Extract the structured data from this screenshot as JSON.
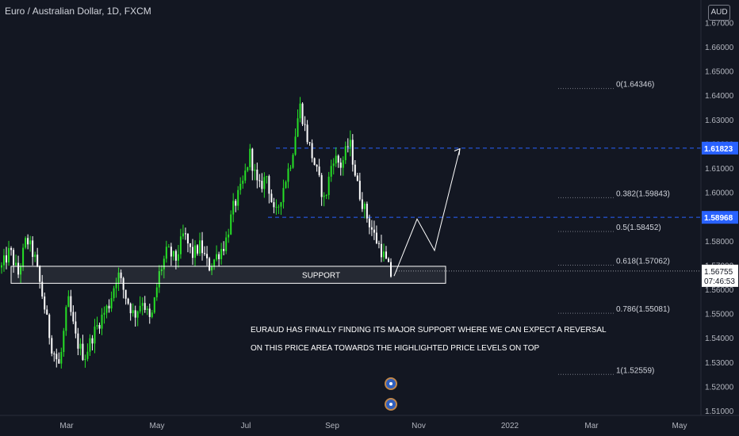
{
  "header": {
    "symbol_title": "Euro / Australian Dollar, 1D, FXCM",
    "currency_button": "AUD"
  },
  "colors": {
    "background": "#131722",
    "up_candle": "#26e026",
    "down_candle": "#ffffff",
    "dashed_line": "#2962ff",
    "fib_dots": "#787b86",
    "text": "#d1d4dc",
    "axis_text": "#b2b5be",
    "highlight_label": "#2962ff",
    "last_price_label": "#ffffff"
  },
  "chart_data": {
    "type": "candlestick",
    "y_axis": {
      "ylim": [
        1.505,
        1.675
      ],
      "ticks": [
        "1.51000",
        "1.52000",
        "1.53000",
        "1.54000",
        "1.55000",
        "1.56000",
        "1.57000",
        "1.58000",
        "1.59000",
        "1.60000",
        "1.61000",
        "1.62000",
        "1.63000",
        "1.64000",
        "1.65000",
        "1.66000",
        "1.67000"
      ]
    },
    "x_axis": {
      "ticks": [
        "Mar",
        "May",
        "Jul",
        "Sep",
        "Nov",
        "2022",
        "Mar",
        "May"
      ]
    },
    "price_labels": {
      "upper_highlight": "1.61823",
      "lower_highlight": "1.58968",
      "last_price": "1.56755",
      "countdown": "07:46:53"
    },
    "horizontal_levels": [
      {
        "price": 1.61823,
        "style": "dashed"
      },
      {
        "price": 1.58968,
        "style": "dashed"
      }
    ],
    "fib_levels": [
      {
        "label": "0(1.64346)",
        "price": 1.64346
      },
      {
        "label": "0.382(1.59843)",
        "price": 1.59843
      },
      {
        "label": "0.5(1.58452)",
        "price": 1.58452
      },
      {
        "label": "0.618(1.57062)",
        "price": 1.57062
      },
      {
        "label": "0.786(1.55081)",
        "price": 1.55081
      },
      {
        "label": "1(1.52559)",
        "price": 1.52559
      }
    ],
    "support_zone": {
      "label": "SUPPORT",
      "top": 1.5695,
      "bottom": 1.5625
    },
    "annotation_lines": [
      "EURAUD HAS FINALLY FINDING ITS MAJOR SUPPORT WHERE WE CAN EXPECT A REVERSAL",
      "ON THIS PRICE AREA TOWARDS THE HIGHLIGHTED PRICE LEVELS ON TOP"
    ],
    "projection_path": [
      1.5655,
      1.589,
      1.576,
      1.618
    ],
    "price_path": [
      1.569,
      1.576,
      1.566,
      1.581,
      1.573,
      1.556,
      1.537,
      1.528,
      1.556,
      1.539,
      1.532,
      1.541,
      1.548,
      1.554,
      1.567,
      1.557,
      1.549,
      1.556,
      1.546,
      1.566,
      1.576,
      1.572,
      1.583,
      1.574,
      1.578,
      1.569,
      1.574,
      1.579,
      1.594,
      1.602,
      1.616,
      1.601,
      1.607,
      1.589,
      1.602,
      1.614,
      1.636,
      1.621,
      1.609,
      1.596,
      1.615,
      1.611,
      1.621,
      1.602,
      1.591,
      1.582,
      1.575,
      1.566
    ]
  }
}
